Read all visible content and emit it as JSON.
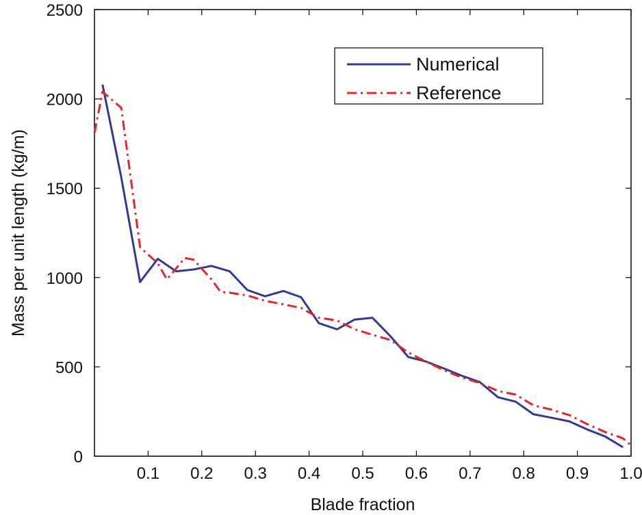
{
  "chart_data": {
    "type": "line",
    "title": "",
    "xlabel": "Blade fraction",
    "ylabel": "Mass per unit length (kg/m)",
    "xlim": [
      0.0,
      1.0
    ],
    "ylim": [
      0,
      2500
    ],
    "xticks": [
      0.1,
      0.2,
      0.3,
      0.4,
      0.5,
      0.6,
      0.7,
      0.8,
      0.9,
      1.0
    ],
    "xtick_labels": [
      "0.1",
      "0.2",
      "0.3",
      "0.4",
      "0.5",
      "0.6",
      "0.7",
      "0.8",
      "0.9",
      "1.0"
    ],
    "yticks": [
      0,
      500,
      1000,
      1500,
      2000,
      2500
    ],
    "ytick_labels": [
      "0",
      "500",
      "1000",
      "1500",
      "2000",
      "2500"
    ],
    "grid": false,
    "legend_position": "top-right",
    "series": [
      {
        "name": "Numerical",
        "color": "#2e3a9a",
        "style": "solid",
        "x": [
          0.015,
          0.05,
          0.085,
          0.118,
          0.152,
          0.185,
          0.218,
          0.252,
          0.285,
          0.318,
          0.352,
          0.385,
          0.418,
          0.452,
          0.485,
          0.518,
          0.552,
          0.585,
          0.618,
          0.652,
          0.685,
          0.718,
          0.752,
          0.785,
          0.818,
          0.852,
          0.885,
          0.918,
          0.952,
          0.985
        ],
        "y": [
          2080,
          1560,
          975,
          1105,
          1035,
          1045,
          1065,
          1035,
          930,
          895,
          925,
          890,
          745,
          710,
          765,
          775,
          670,
          555,
          530,
          490,
          450,
          415,
          330,
          305,
          235,
          215,
          195,
          150,
          110,
          50
        ]
      },
      {
        "name": "Reference",
        "color": "#e8232a",
        "style": "dash-dot",
        "x": [
          0.0,
          0.015,
          0.05,
          0.085,
          0.118,
          0.135,
          0.152,
          0.168,
          0.185,
          0.218,
          0.235,
          0.252,
          0.285,
          0.318,
          0.352,
          0.385,
          0.418,
          0.452,
          0.485,
          0.518,
          0.552,
          0.585,
          0.618,
          0.652,
          0.685,
          0.718,
          0.752,
          0.785,
          0.818,
          0.852,
          0.885,
          0.918,
          0.952,
          0.985,
          1.0
        ],
        "y": [
          1810,
          2040,
          1950,
          1170,
          1080,
          990,
          1050,
          1110,
          1100,
          990,
          920,
          915,
          900,
          870,
          850,
          830,
          775,
          760,
          710,
          680,
          650,
          580,
          530,
          480,
          440,
          410,
          365,
          345,
          285,
          260,
          230,
          180,
          135,
          100,
          60
        ]
      }
    ]
  }
}
